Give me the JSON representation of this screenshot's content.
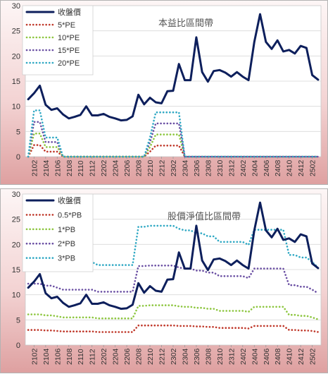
{
  "chart_data": [
    {
      "type": "line",
      "title": "本益比區間帶",
      "ylim": [
        0,
        30
      ],
      "yticks": [
        0,
        5,
        10,
        15,
        20,
        25,
        30
      ],
      "x": [
        "2101",
        "2102",
        "2103",
        "2104",
        "2105",
        "2106",
        "2107",
        "2108",
        "2109",
        "2110",
        "2111",
        "2112",
        "2201",
        "2202",
        "2203",
        "2204",
        "2205",
        "2206",
        "2207",
        "2208",
        "2209",
        "2210",
        "2211",
        "2212",
        "2301",
        "2302",
        "2303",
        "2304",
        "2305",
        "2306",
        "2307",
        "2308",
        "2309",
        "2310",
        "2311",
        "2312",
        "2401",
        "2402",
        "2403",
        "2404",
        "2405",
        "2406",
        "2407",
        "2408",
        "2409",
        "2410",
        "2411",
        "2412",
        "2501",
        "2502",
        "2503"
      ],
      "xtick_labels": [
        "2102",
        "2104",
        "2106",
        "2108",
        "2110",
        "2112",
        "2202",
        "2204",
        "2206",
        "2208",
        "2210",
        "2212",
        "2302",
        "2304",
        "2306",
        "2308",
        "2310",
        "2312",
        "2402",
        "2404",
        "2406",
        "2408",
        "2410",
        "2412",
        "2502"
      ],
      "grid": true,
      "legend_position": "top-left",
      "series": [
        {
          "name": "收盤價",
          "color": "#0d1f5c",
          "style": "solid",
          "values": [
            11.4,
            12.6,
            14.1,
            10.3,
            9.3,
            9.6,
            8.4,
            7.6,
            7.9,
            8.3,
            10.0,
            8.2,
            8.2,
            8.5,
            7.9,
            7.6,
            7.2,
            7.3,
            8.0,
            12.3,
            10.4,
            11.7,
            10.8,
            10.6,
            13.0,
            13.1,
            18.4,
            15.2,
            15.2,
            23.7,
            16.8,
            14.9,
            17.0,
            17.2,
            16.7,
            15.9,
            16.8,
            15.9,
            15.2,
            22.8,
            28.3,
            22.8,
            21.4,
            23.1,
            20.9,
            21.2,
            20.5,
            22.0,
            21.6,
            16.2,
            15.3
          ]
        },
        {
          "name": "5*PE",
          "color": "#c0392b",
          "style": "dotted",
          "values": [
            0,
            2.3,
            2.3,
            1.0,
            1.0,
            1.0,
            0,
            0,
            0,
            0,
            0,
            0,
            0,
            0,
            0,
            0,
            0,
            0,
            0,
            0,
            0,
            1.0,
            2.2,
            2.2,
            2.2,
            2.2,
            2.2,
            0,
            0,
            0,
            0,
            0,
            0,
            0,
            0,
            0,
            0,
            0,
            0,
            0,
            0,
            0,
            0,
            0,
            0,
            0,
            0,
            0,
            0,
            0,
            0
          ]
        },
        {
          "name": "10*PE",
          "color": "#8dc63f",
          "style": "dotted",
          "values": [
            0,
            4.6,
            4.6,
            1.9,
            1.9,
            1.9,
            0,
            0,
            0,
            0,
            0,
            0,
            0,
            0,
            0,
            0,
            0,
            0,
            0,
            0,
            0,
            1.9,
            4.4,
            4.4,
            4.4,
            4.4,
            4.4,
            0,
            0,
            0,
            0,
            0,
            0,
            0,
            0,
            0,
            0,
            0,
            0,
            0,
            0,
            0,
            0,
            0,
            0,
            0,
            0,
            0,
            0,
            0,
            0
          ]
        },
        {
          "name": "15*PE",
          "color": "#6a4fa3",
          "style": "dotted",
          "values": [
            0,
            6.9,
            6.9,
            2.9,
            2.9,
            2.9,
            0,
            0,
            0,
            0,
            0,
            0,
            0,
            0,
            0,
            0,
            0,
            0,
            0,
            0,
            0,
            2.9,
            6.6,
            6.6,
            6.6,
            6.6,
            6.6,
            0,
            0,
            0,
            0,
            0,
            0,
            0,
            0,
            0,
            0,
            0,
            0,
            0,
            0,
            0,
            0,
            0,
            0,
            0,
            0,
            0,
            0,
            0,
            0
          ]
        },
        {
          "name": "20*PE",
          "color": "#31a9c4",
          "style": "dotted",
          "values": [
            0,
            9.2,
            9.2,
            3.8,
            3.8,
            3.8,
            0,
            0,
            0,
            0,
            0,
            0,
            0,
            0,
            0,
            0,
            0,
            0,
            0,
            0,
            0,
            3.8,
            8.8,
            8.8,
            8.8,
            8.8,
            8.8,
            0,
            0,
            0,
            0,
            0,
            0,
            0,
            0,
            0,
            0,
            0,
            0,
            0,
            0,
            0,
            0,
            0,
            0,
            0,
            0,
            0,
            0,
            0,
            0
          ]
        }
      ]
    },
    {
      "type": "line",
      "title": "股價淨值比區間帶",
      "ylim": [
        0,
        30
      ],
      "yticks": [
        0,
        5,
        10,
        15,
        20,
        25,
        30
      ],
      "x": [
        "2101",
        "2102",
        "2103",
        "2104",
        "2105",
        "2106",
        "2107",
        "2108",
        "2109",
        "2110",
        "2111",
        "2112",
        "2201",
        "2202",
        "2203",
        "2204",
        "2205",
        "2206",
        "2207",
        "2208",
        "2209",
        "2210",
        "2211",
        "2212",
        "2301",
        "2302",
        "2303",
        "2304",
        "2305",
        "2306",
        "2307",
        "2308",
        "2309",
        "2310",
        "2311",
        "2312",
        "2401",
        "2402",
        "2403",
        "2404",
        "2405",
        "2406",
        "2407",
        "2408",
        "2409",
        "2410",
        "2411",
        "2412",
        "2501",
        "2502",
        "2503"
      ],
      "xtick_labels": [
        "2102",
        "2104",
        "2106",
        "2108",
        "2110",
        "2112",
        "2202",
        "2204",
        "2206",
        "2208",
        "2210",
        "2212",
        "2302",
        "2304",
        "2306",
        "2308",
        "2310",
        "2312",
        "2402",
        "2404",
        "2406",
        "2408",
        "2410",
        "2412",
        "2502"
      ],
      "grid": true,
      "legend_position": "top-left",
      "series": [
        {
          "name": "收盤價",
          "color": "#0d1f5c",
          "style": "solid",
          "values": [
            11.4,
            12.6,
            14.1,
            10.3,
            9.3,
            9.6,
            8.4,
            7.6,
            7.9,
            8.3,
            10.0,
            8.2,
            8.2,
            8.5,
            7.9,
            7.6,
            7.2,
            7.3,
            8.0,
            12.3,
            10.4,
            11.7,
            10.8,
            10.6,
            13.0,
            13.1,
            18.4,
            15.2,
            15.2,
            23.7,
            16.8,
            14.9,
            17.0,
            17.2,
            16.7,
            15.9,
            16.8,
            15.9,
            15.2,
            22.8,
            28.3,
            22.8,
            21.4,
            23.1,
            20.9,
            21.2,
            20.5,
            22.0,
            21.6,
            16.2,
            15.3
          ]
        },
        {
          "name": "0.5*PB",
          "color": "#c0392b",
          "style": "dotted",
          "values": [
            3.0,
            3.0,
            3.0,
            2.9,
            2.9,
            2.8,
            2.7,
            2.7,
            2.7,
            2.7,
            2.7,
            2.7,
            2.6,
            2.6,
            2.6,
            2.6,
            2.6,
            2.6,
            2.6,
            3.9,
            3.9,
            3.9,
            3.9,
            3.9,
            3.9,
            3.9,
            3.8,
            3.8,
            3.8,
            3.7,
            3.7,
            3.6,
            3.6,
            3.4,
            3.4,
            3.4,
            3.4,
            3.4,
            3.3,
            3.8,
            3.8,
            3.8,
            3.8,
            3.8,
            3.8,
            3.0,
            3.0,
            2.9,
            2.9,
            2.8,
            2.6
          ]
        },
        {
          "name": "1*PB",
          "color": "#8dc63f",
          "style": "dotted",
          "values": [
            6.1,
            6.1,
            6.1,
            5.9,
            5.9,
            5.7,
            5.5,
            5.5,
            5.5,
            5.5,
            5.5,
            5.5,
            5.3,
            5.3,
            5.3,
            5.3,
            5.3,
            5.3,
            5.3,
            7.8,
            7.8,
            7.9,
            7.9,
            7.9,
            7.9,
            7.9,
            7.7,
            7.6,
            7.6,
            7.4,
            7.4,
            7.2,
            7.2,
            6.8,
            6.8,
            6.8,
            6.8,
            6.8,
            6.6,
            7.6,
            7.6,
            7.6,
            7.6,
            7.6,
            7.6,
            6.0,
            6.0,
            5.8,
            5.8,
            5.5,
            5.1
          ]
        },
        {
          "name": "2*PB",
          "color": "#6a4fa3",
          "style": "dotted",
          "values": [
            12.2,
            12.2,
            12.2,
            11.8,
            11.8,
            11.4,
            11.0,
            11.0,
            11.0,
            11.0,
            11.0,
            11.0,
            10.6,
            10.6,
            10.6,
            10.6,
            10.6,
            10.6,
            10.6,
            15.7,
            15.7,
            15.8,
            15.8,
            15.8,
            15.8,
            15.8,
            15.4,
            15.2,
            15.2,
            14.8,
            14.8,
            14.4,
            14.4,
            13.7,
            13.7,
            13.7,
            13.7,
            13.7,
            13.3,
            15.2,
            15.2,
            15.2,
            15.2,
            15.2,
            15.2,
            11.9,
            11.9,
            11.6,
            11.6,
            11.0,
            10.3
          ]
        },
        {
          "name": "3*PB",
          "color": "#31a9c4",
          "style": "dotted",
          "values": [
            18.3,
            18.3,
            18.3,
            17.7,
            17.7,
            17.1,
            16.5,
            16.5,
            16.5,
            16.5,
            16.5,
            16.5,
            15.9,
            15.9,
            15.9,
            15.9,
            15.9,
            15.9,
            15.9,
            23.5,
            23.5,
            23.7,
            23.7,
            23.7,
            23.7,
            23.7,
            23.1,
            22.8,
            22.8,
            22.2,
            22.2,
            21.6,
            21.6,
            20.5,
            20.5,
            20.5,
            20.5,
            20.5,
            19.9,
            22.9,
            22.9,
            22.9,
            22.9,
            22.9,
            22.9,
            17.9,
            17.9,
            17.4,
            17.4,
            16.5,
            15.4
          ]
        }
      ]
    }
  ]
}
